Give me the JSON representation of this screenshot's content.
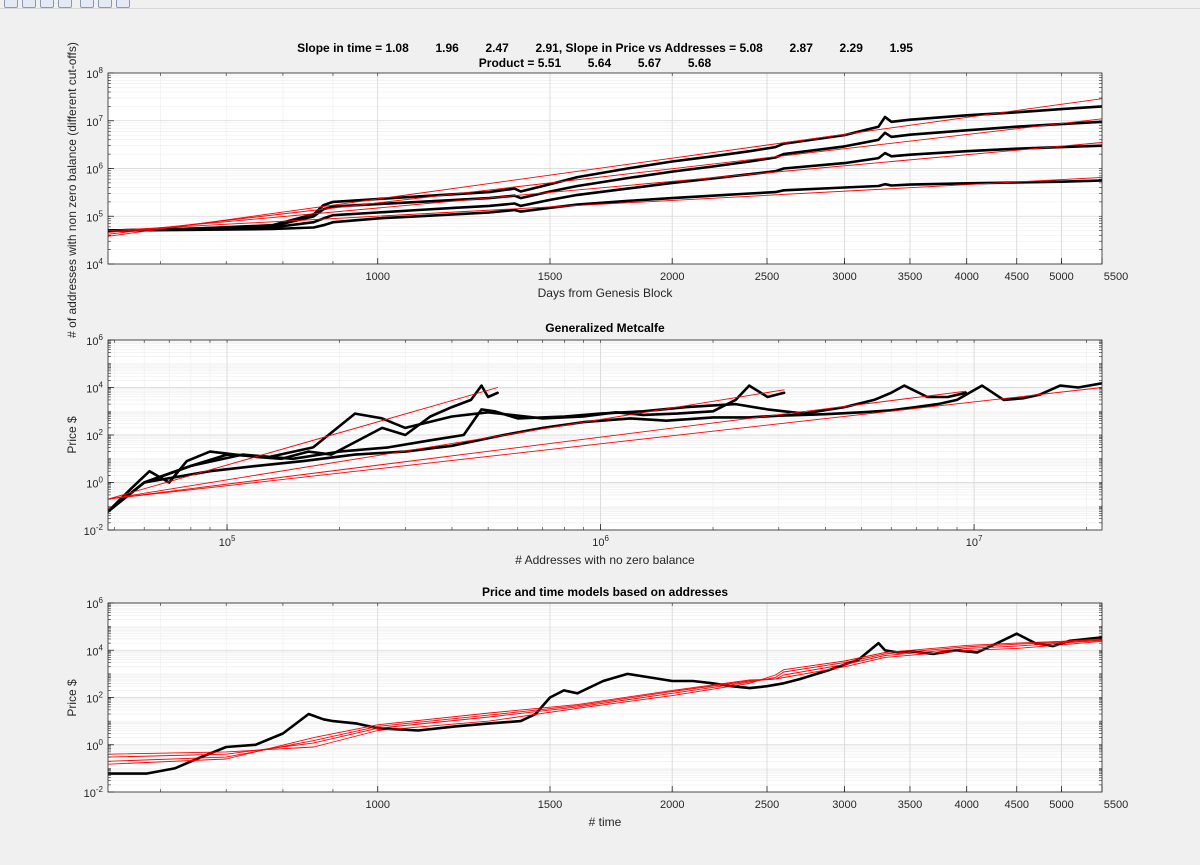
{
  "figure": {
    "shared_ylabel": "# of addresses with non zero balance (different cut-offs)"
  },
  "colors": {
    "data": "#000000",
    "fit": "#ff0000",
    "axes_bg": "#ffffff",
    "figure_bg": "#f0f0f0"
  },
  "chart_data": [
    {
      "type": "line",
      "title": "Slope in time = 1.08        1.96        2.47        2.91, Slope in Price vs Addresses = 5.08        2.87        2.29        1.95",
      "subtitle": "Product = 5.51        5.64        5.67        5.68",
      "xlabel": "Days from Genesis Block",
      "ylabel": "",
      "xscale": "log",
      "yscale": "log",
      "xlim": [
        530,
        5500
      ],
      "ylim": [
        10000,
        100000000
      ],
      "xticks": [
        1000,
        1500,
        2000,
        2500,
        3000,
        3500,
        4000,
        4500,
        5000,
        5500
      ],
      "xtick_labels": [
        "1000",
        "1500",
        "2000",
        "2500",
        "3000",
        "3500",
        "4000",
        "4500",
        "5000",
        "5500"
      ],
      "yticks": [
        10000,
        100000,
        1000000,
        10000000,
        100000000
      ],
      "ytick_labels": [
        [
          "10",
          "4"
        ],
        [
          "10",
          "5"
        ],
        [
          "10",
          "6"
        ],
        [
          "10",
          "7"
        ],
        [
          "10",
          "8"
        ]
      ],
      "grid": true,
      "series": [
        {
          "role": "data",
          "x": [
            530,
            650,
            780,
            860,
            880,
            900,
            1000,
            1100,
            1200,
            1300,
            1380,
            1400,
            1500,
            1600,
            1800,
            2000,
            2200,
            2400,
            2550,
            2600,
            3000,
            3250,
            3300,
            3350,
            3500,
            4000,
            4500,
            5000,
            5500
          ],
          "y": [
            50000,
            55000,
            65000,
            110000,
            170000,
            200000,
            230000,
            260000,
            290000,
            320000,
            380000,
            330000,
            470000,
            660000,
            1000000,
            1400000,
            1800000,
            2300000,
            2800000,
            3300000,
            5000000,
            7500000,
            12000000,
            9500000,
            10500000,
            13000000,
            15000000,
            17500000,
            20000000
          ]
        },
        {
          "role": "data",
          "x": [
            530,
            650,
            780,
            860,
            880,
            900,
            1000,
            1100,
            1200,
            1300,
            1380,
            1400,
            1500,
            1600,
            1800,
            2000,
            2200,
            2400,
            2550,
            2600,
            3000,
            3250,
            3300,
            3350,
            3500,
            4000,
            4500,
            5000,
            5500
          ],
          "y": [
            50000,
            55000,
            62000,
            100000,
            140000,
            160000,
            180000,
            200000,
            220000,
            240000,
            270000,
            240000,
            330000,
            430000,
            630000,
            860000,
            1100000,
            1400000,
            1700000,
            2000000,
            2900000,
            4000000,
            5600000,
            4600000,
            5100000,
            6300000,
            7500000,
            8500000,
            9500000
          ]
        },
        {
          "role": "data",
          "x": [
            530,
            650,
            780,
            860,
            880,
            900,
            1000,
            1100,
            1200,
            1300,
            1380,
            1400,
            1500,
            1600,
            1800,
            2000,
            2200,
            2400,
            2550,
            2600,
            3000,
            3250,
            3300,
            3350,
            3500,
            4000,
            4500,
            5000,
            5500
          ],
          "y": [
            50000,
            54000,
            58000,
            75000,
            90000,
            105000,
            120000,
            135000,
            150000,
            165000,
            185000,
            165000,
            220000,
            280000,
            380000,
            500000,
            620000,
            760000,
            880000,
            1000000,
            1300000,
            1650000,
            2100000,
            1800000,
            1950000,
            2300000,
            2600000,
            2800000,
            3000000
          ]
        },
        {
          "role": "data",
          "x": [
            530,
            650,
            780,
            860,
            880,
            900,
            1000,
            1100,
            1200,
            1300,
            1380,
            1400,
            1500,
            1600,
            1800,
            2000,
            2200,
            2400,
            2550,
            2600,
            3000,
            3250,
            3300,
            3350,
            3500,
            4000,
            4500,
            5000,
            5500
          ],
          "y": [
            50000,
            52000,
            54000,
            58000,
            65000,
            75000,
            90000,
            100000,
            110000,
            120000,
            135000,
            125000,
            150000,
            175000,
            210000,
            240000,
            270000,
            300000,
            320000,
            350000,
            400000,
            430000,
            470000,
            440000,
            460000,
            490000,
            510000,
            530000,
            560000
          ]
        },
        {
          "role": "fit",
          "x": [
            530,
            5500
          ],
          "y": [
            38000,
            29000000
          ]
        },
        {
          "role": "fit",
          "x": [
            530,
            5500
          ],
          "y": [
            42000,
            11000000
          ]
        },
        {
          "role": "fit",
          "x": [
            530,
            5500
          ],
          "y": [
            46000,
            3500000
          ]
        },
        {
          "role": "fit",
          "x": [
            530,
            5500
          ],
          "y": [
            50000,
            650000
          ]
        }
      ]
    },
    {
      "type": "line",
      "title": "Generalized Metcalfe",
      "xlabel": "# Addresses with no zero balance",
      "ylabel": "Price $",
      "xscale": "log",
      "yscale": "log",
      "xlim": [
        48000,
        22000000
      ],
      "ylim": [
        0.01,
        1000000
      ],
      "xticks": [
        100000,
        1000000,
        10000000
      ],
      "xtick_labels": [
        [
          "10",
          "5"
        ],
        [
          "10",
          "6"
        ],
        [
          "10",
          "7"
        ]
      ],
      "yticks": [
        0.01,
        1,
        100,
        10000,
        1000000
      ],
      "ytick_labels": [
        [
          "10",
          "-2"
        ],
        [
          "10",
          "0"
        ],
        [
          "10",
          "2"
        ],
        [
          "10",
          "4"
        ],
        [
          "10",
          "6"
        ]
      ],
      "grid": true,
      "series": [
        {
          "role": "data",
          "x": [
            48000,
            55000,
            62000,
            70000,
            78000,
            90000,
            105000,
            120000,
            140000,
            165000,
            190000,
            220000,
            260000,
            300000,
            350000,
            400000,
            450000,
            480000,
            500000,
            530000
          ],
          "y": [
            0.06,
            0.5,
            3,
            1,
            8,
            20,
            15,
            12,
            10,
            20,
            15,
            50,
            200,
            100,
            600,
            1500,
            3000,
            12000,
            4000,
            6000
          ]
        },
        {
          "role": "data",
          "x": [
            48000,
            60000,
            80000,
            100000,
            130000,
            170000,
            220000,
            260000,
            300000,
            400000,
            500000,
            700000,
            900000,
            1100000,
            1300000,
            1600000,
            2000000,
            2300000,
            2500000,
            2800000,
            3100000
          ],
          "y": [
            0.06,
            1,
            5,
            15,
            12,
            30,
            800,
            500,
            200,
            600,
            900,
            500,
            600,
            900,
            700,
            800,
            1000,
            3000,
            12000,
            4000,
            6000
          ]
        },
        {
          "role": "data",
          "x": [
            48000,
            60000,
            80000,
            110000,
            150000,
            200000,
            270000,
            350000,
            430000,
            480000,
            520000,
            600000,
            800000,
            1000000,
            1300000,
            1700000,
            2300000,
            2800000,
            3500000,
            4500000,
            5400000,
            6000000,
            6500000,
            7500000,
            8500000,
            9500000
          ],
          "y": [
            0.06,
            1,
            5,
            15,
            10,
            20,
            30,
            60,
            100,
            1200,
            1000,
            500,
            600,
            800,
            1000,
            1500,
            2000,
            1200,
            800,
            1500,
            3000,
            6000,
            12000,
            4000,
            4000,
            6000
          ]
        },
        {
          "role": "data",
          "x": [
            48000,
            60000,
            90000,
            120000,
            160000,
            220000,
            300000,
            400000,
            550000,
            700000,
            900000,
            1200000,
            1500000,
            2000000,
            2500000,
            3000000,
            4000000,
            5000000,
            6000000,
            7000000,
            8000000,
            9000000,
            10500000,
            12000000,
            13500000,
            15000000,
            17000000,
            19000000,
            22000000
          ],
          "y": [
            0.06,
            1,
            3,
            5,
            8,
            15,
            20,
            35,
            100,
            200,
            350,
            500,
            400,
            550,
            550,
            650,
            750,
            900,
            1100,
            1500,
            2000,
            3000,
            12000,
            3000,
            3500,
            5000,
            12000,
            10000,
            15000
          ]
        },
        {
          "role": "fit",
          "x": [
            48000,
            530000
          ],
          "y": [
            0.2,
            10000
          ]
        },
        {
          "role": "fit",
          "x": [
            48000,
            3100000
          ],
          "y": [
            0.2,
            8000
          ]
        },
        {
          "role": "fit",
          "x": [
            48000,
            9500000
          ],
          "y": [
            0.2,
            7000
          ]
        },
        {
          "role": "fit",
          "x": [
            48000,
            22000000
          ],
          "y": [
            0.2,
            10000
          ]
        }
      ]
    },
    {
      "type": "line",
      "title": "Price and time models based on addresses",
      "xlabel": "# time",
      "ylabel": "Price $",
      "xscale": "log",
      "yscale": "log",
      "xlim": [
        530,
        5500
      ],
      "ylim": [
        0.01,
        1000000
      ],
      "xticks": [
        1000,
        1500,
        2000,
        2500,
        3000,
        3500,
        4000,
        4500,
        5000,
        5500
      ],
      "xtick_labels": [
        "1000",
        "1500",
        "2000",
        "2500",
        "3000",
        "3500",
        "4000",
        "4500",
        "5000",
        "5500"
      ],
      "yticks": [
        0.01,
        1,
        100,
        10000,
        1000000
      ],
      "ytick_labels": [
        [
          "10",
          "-2"
        ],
        [
          "10",
          "0"
        ],
        [
          "10",
          "2"
        ],
        [
          "10",
          "4"
        ],
        [
          "10",
          "6"
        ]
      ],
      "grid": true,
      "series": [
        {
          "role": "data",
          "x": [
            530,
            580,
            620,
            660,
            700,
            750,
            800,
            850,
            880,
            900,
            950,
            1000,
            1100,
            1200,
            1300,
            1400,
            1450,
            1500,
            1550,
            1600,
            1700,
            1800,
            1900,
            2000,
            2100,
            2200,
            2300,
            2400,
            2500,
            2600,
            2700,
            2900,
            3100,
            3250,
            3300,
            3400,
            3500,
            3700,
            3900,
            4100,
            4300,
            4500,
            4700,
            4900,
            5100,
            5300,
            5500
          ],
          "y": [
            0.06,
            0.06,
            0.1,
            0.3,
            0.8,
            1,
            3,
            20,
            12,
            10,
            8,
            5,
            4,
            6,
            8,
            10,
            20,
            100,
            200,
            150,
            500,
            1000,
            700,
            500,
            500,
            400,
            300,
            250,
            300,
            400,
            600,
            1500,
            4000,
            20000,
            10000,
            8000,
            9000,
            7000,
            10000,
            8000,
            20000,
            50000,
            20000,
            15000,
            25000,
            30000,
            35000
          ]
        },
        {
          "role": "fit",
          "x": [
            530,
            700,
            860,
            1000,
            1300,
            1600,
            2000,
            2400,
            2550,
            2600,
            3000,
            3300,
            4000,
            4500,
            5000,
            5500
          ],
          "y": [
            0.4,
            0.5,
            0.8,
            4,
            10,
            35,
            120,
            400,
            900,
            1500,
            3500,
            8000,
            16000,
            20000,
            24000,
            30000
          ]
        },
        {
          "role": "fit",
          "x": [
            530,
            700,
            860,
            1000,
            1300,
            1600,
            2000,
            2400,
            2550,
            2600,
            3000,
            3300,
            4000,
            4500,
            5000,
            5500
          ],
          "y": [
            0.3,
            0.4,
            1.2,
            5,
            15,
            40,
            150,
            450,
            700,
            1200,
            3000,
            7000,
            14000,
            18000,
            22000,
            28000
          ]
        },
        {
          "role": "fit",
          "x": [
            530,
            700,
            860,
            1000,
            1300,
            1600,
            2000,
            2400,
            2550,
            2600,
            3000,
            3300,
            4000,
            4500,
            5000,
            5500
          ],
          "y": [
            0.2,
            0.3,
            1.5,
            6,
            18,
            45,
            180,
            500,
            600,
            900,
            2500,
            6000,
            12000,
            15000,
            20000,
            26000
          ]
        },
        {
          "role": "fit",
          "x": [
            530,
            700,
            860,
            1000,
            1300,
            1600,
            2000,
            2400,
            2550,
            2600,
            3000,
            3300,
            4000,
            4500,
            5000,
            5500
          ],
          "y": [
            0.15,
            0.25,
            2,
            7,
            22,
            50,
            200,
            550,
            600,
            700,
            2000,
            5000,
            10000,
            12000,
            17000,
            24000
          ]
        }
      ]
    }
  ]
}
